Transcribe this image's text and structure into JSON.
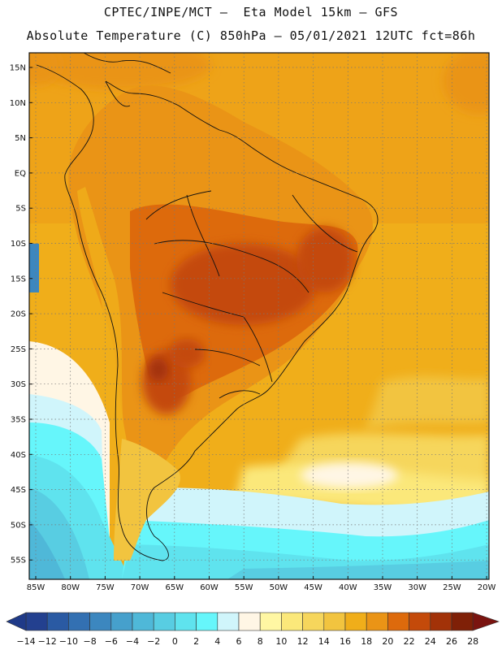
{
  "header": {
    "line1": "CPTEC/INPE/MCT –  Eta Model 15km – GFS",
    "line2": "Absolute Temperature (C) 850hPa – 05/01/2021 12UTC fct=86h"
  },
  "map": {
    "lat_labels": [
      "15N",
      "10N",
      "5N",
      "EQ",
      "5S",
      "10S",
      "15S",
      "20S",
      "25S",
      "30S",
      "35S",
      "40S",
      "45S",
      "50S",
      "55S"
    ],
    "lon_labels": [
      "85W",
      "80W",
      "75W",
      "70W",
      "65W",
      "60W",
      "55W",
      "50W",
      "45W",
      "40W",
      "35W",
      "30W",
      "25W",
      "20W"
    ],
    "graticule": "dotted",
    "region": "South America"
  },
  "colorbar": {
    "labels": [
      "-14",
      "-12",
      "-10",
      "-8",
      "-6",
      "-4",
      "-2",
      "0",
      "2",
      "4",
      "6",
      "8",
      "10",
      "12",
      "14",
      "16",
      "18",
      "20",
      "22",
      "24",
      "26",
      "28"
    ],
    "colors": [
      "#23408f",
      "#2a5aa3",
      "#3370b2",
      "#3c87bf",
      "#46a0cc",
      "#4fb8d8",
      "#58cde2",
      "#5fe3ee",
      "#66f6fb",
      "#d0f5fb",
      "#fff6e5",
      "#fff7a3",
      "#fbe87a",
      "#f6d65c",
      "#f2c43f",
      "#f0ae1a",
      "#ea9416",
      "#dd6a0c",
      "#c44a0a",
      "#a23208",
      "#7f2007"
    ],
    "under_color": "#1f3a88",
    "over_color": "#7a1410"
  }
}
